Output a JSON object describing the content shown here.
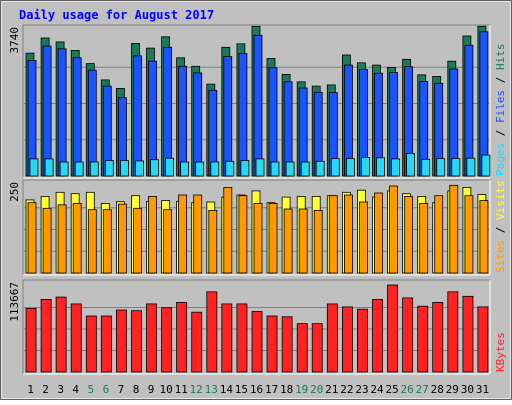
{
  "chart_data": {
    "type": "bar",
    "title": "Daily usage for August 2017",
    "categories": [
      "1",
      "2",
      "3",
      "4",
      "5",
      "6",
      "7",
      "8",
      "9",
      "10",
      "11",
      "12",
      "13",
      "14",
      "15",
      "16",
      "17",
      "18",
      "19",
      "20",
      "21",
      "22",
      "23",
      "24",
      "25",
      "26",
      "27",
      "28",
      "29",
      "30",
      "31"
    ],
    "weekend_days": [
      "5",
      "6",
      "12",
      "13",
      "19",
      "20",
      "26",
      "27"
    ],
    "panels": [
      {
        "name": "hits-files-pages",
        "ymax": 3740,
        "ymax_label": "3740",
        "series": [
          {
            "name": "Hits",
            "color": "#1a7a5a",
            "values": [
              3170,
              3560,
              3460,
              3240,
              2900,
              2480,
              2260,
              3420,
              3300,
              3590,
              3050,
              2830,
              2370,
              3320,
              3410,
              3860,
              3030,
              2620,
              2430,
              2320,
              2350,
              3120,
              2920,
              2860,
              2800,
              3010,
              2610,
              2570,
              2960,
              3610,
              3860
            ]
          },
          {
            "name": "Files",
            "color": "#1a53ff",
            "values": [
              2980,
              3350,
              3280,
              3050,
              2730,
              2320,
              2020,
              3100,
              2960,
              3320,
              2830,
              2660,
              2210,
              3080,
              3160,
              3630,
              2790,
              2430,
              2270,
              2160,
              2150,
              2860,
              2750,
              2650,
              2670,
              2820,
              2440,
              2390,
              2760,
              3370,
              3720
            ]
          },
          {
            "name": "Pages",
            "color": "#28d8f0",
            "values": [
              440,
              440,
              360,
              360,
              360,
              400,
              400,
              390,
              420,
              460,
              360,
              360,
              360,
              380,
              400,
              440,
              360,
              360,
              360,
              380,
              450,
              450,
              480,
              470,
              440,
              580,
              430,
              450,
              450,
              460,
              540
            ]
          }
        ],
        "label_colors": {
          "Pages": "#28d8f0",
          "Files": "#1a53ff",
          "Hits": "#1a7a5a"
        }
      },
      {
        "name": "visits-sites",
        "ymax": 250,
        "ymax_label": "250",
        "series": [
          {
            "name": "Visits",
            "color": "#ffff33",
            "values": [
              210,
              220,
              232,
              228,
              232,
              200,
              205,
              222,
              206,
              208,
              206,
              202,
              204,
              218,
              224,
              236,
              202,
              218,
              220,
              220,
              222,
              232,
              238,
              218,
              236,
              228,
              220,
              202,
              236,
              246,
              226
            ]
          },
          {
            "name": "Sites",
            "color": "#ff9900",
            "values": [
              202,
              186,
              196,
              200,
              182,
              182,
              198,
              186,
              220,
              182,
              224,
              224,
              180,
              246,
              222,
              200,
              200,
              184,
              184,
              180,
              222,
              224,
              204,
              230,
              250,
              220,
              200,
              222,
              252,
              222,
              208
            ]
          }
        ],
        "label_colors": {
          "Sites": "#ff9900",
          "Visits": "#ffff33"
        }
      },
      {
        "name": "kbytes",
        "ymax": 113667,
        "ymax_label": "113667",
        "series": [
          {
            "name": "KBytes",
            "color": "#ff2222",
            "values": [
              84000,
              96000,
              99000,
              90000,
              74000,
              74000,
              82000,
              81000,
              90000,
              85000,
              92000,
              79000,
              106000,
              90000,
              90000,
              80000,
              74000,
              73000,
              64000,
              64000,
              90000,
              86000,
              83000,
              96000,
              115000,
              98000,
              87000,
              92000,
              106000,
              100000,
              86000
            ]
          }
        ],
        "label_colors": {
          "KBytes": "#ff2222"
        }
      }
    ]
  },
  "colors": {
    "frame_bg": "#c0c0c0",
    "plot_bg": "#c0c0c0",
    "title_color": "#0000ff",
    "day_label": "#000000",
    "weekend_label": "#1a7a5a",
    "gridline": "#808080"
  }
}
